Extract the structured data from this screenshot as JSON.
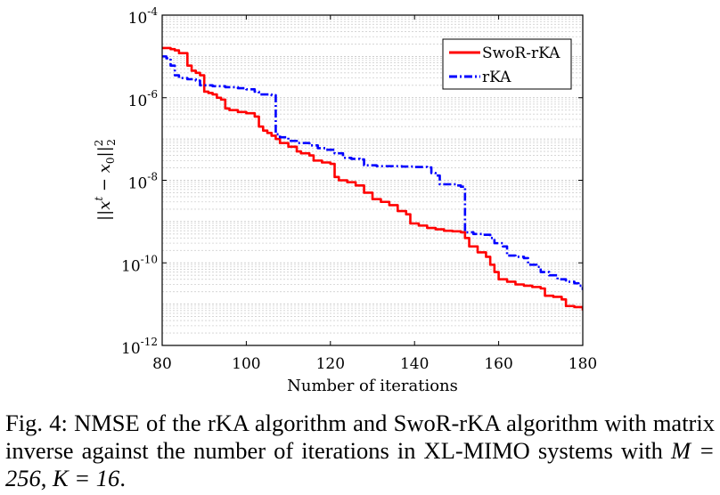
{
  "caption": {
    "text_main": "Fig. 4: NMSE of the rKA algorithm and SwoR-rKA algorithm with matrix inverse against the number of iterations in XL-MIMO systems with ",
    "math_m": "M = 256",
    "sep": ", ",
    "math_k": "K = 16",
    "end": "."
  },
  "colors": {
    "swor": "#ff0000",
    "rka": "#0000ff"
  },
  "chart_data": {
    "type": "line",
    "xlabel": "Number of iterations",
    "ylabel": "||x^t − x_0||_2^2",
    "xlim": [
      80,
      180
    ],
    "ylim": [
      1e-12,
      0.0001
    ],
    "yscale": "log",
    "grid": true,
    "legend_position": "top-right",
    "x_ticks": [
      80,
      100,
      120,
      140,
      160,
      180
    ],
    "y_ticks": [
      {
        "value": 1e-12,
        "base": "10",
        "exp": "-12"
      },
      {
        "value": 1e-10,
        "base": "10",
        "exp": "-10"
      },
      {
        "value": 1e-08,
        "base": "10",
        "exp": "-8"
      },
      {
        "value": 1e-06,
        "base": "10",
        "exp": "-6"
      },
      {
        "value": 0.0001,
        "base": "10",
        "exp": "-4"
      }
    ],
    "series": [
      {
        "name": "SwoR-rKA",
        "color": "#ff0000",
        "style": "solid",
        "points": [
          [
            80,
            1.6e-05
          ],
          [
            81,
            1.6e-05
          ],
          [
            82,
            1.5e-05
          ],
          [
            83,
            1.4e-05
          ],
          [
            84,
            1.2e-05
          ],
          [
            85,
            1.2e-05
          ],
          [
            86,
            6e-06
          ],
          [
            87,
            4.5e-06
          ],
          [
            88,
            4e-06
          ],
          [
            89,
            3.5e-06
          ],
          [
            90,
            1.4e-06
          ],
          [
            91,
            1.3e-06
          ],
          [
            92,
            1.2e-06
          ],
          [
            93,
            1e-06
          ],
          [
            94,
            9e-07
          ],
          [
            95,
            5.5e-07
          ],
          [
            96,
            5e-07
          ],
          [
            98,
            4.5e-07
          ],
          [
            100,
            4.2e-07
          ],
          [
            102,
            3.5e-07
          ],
          [
            103,
            2e-07
          ],
          [
            104,
            1.6e-07
          ],
          [
            105,
            1.4e-07
          ],
          [
            106,
            1.2e-07
          ],
          [
            107,
            1e-07
          ],
          [
            108,
            8e-08
          ],
          [
            110,
            6.5e-08
          ],
          [
            112,
            5e-08
          ],
          [
            113,
            4.5e-08
          ],
          [
            115,
            4e-08
          ],
          [
            116,
            3e-08
          ],
          [
            118,
            2.7e-08
          ],
          [
            120,
            2.5e-08
          ],
          [
            121,
            1.2e-08
          ],
          [
            122,
            1e-08
          ],
          [
            124,
            9e-09
          ],
          [
            126,
            7.5e-09
          ],
          [
            128,
            5e-09
          ],
          [
            130,
            3.5e-09
          ],
          [
            132,
            3e-09
          ],
          [
            134,
            2.5e-09
          ],
          [
            136,
            1.8e-09
          ],
          [
            138,
            1.5e-09
          ],
          [
            139,
            9e-10
          ],
          [
            141,
            8e-10
          ],
          [
            143,
            7e-10
          ],
          [
            145,
            6.5e-10
          ],
          [
            147,
            6e-10
          ],
          [
            149,
            5.8e-10
          ],
          [
            151,
            5.5e-10
          ],
          [
            152,
            4e-10
          ],
          [
            153,
            2.5e-10
          ],
          [
            155,
            1.8e-10
          ],
          [
            157,
            1.4e-10
          ],
          [
            158,
            9e-11
          ],
          [
            159,
            6e-11
          ],
          [
            160,
            4e-11
          ],
          [
            162,
            3.5e-11
          ],
          [
            164,
            3e-11
          ],
          [
            166,
            2.8e-11
          ],
          [
            168,
            2.6e-11
          ],
          [
            170,
            2.4e-11
          ],
          [
            171,
            1.6e-11
          ],
          [
            173,
            1.5e-11
          ],
          [
            175,
            1.3e-11
          ],
          [
            176,
            9e-12
          ],
          [
            178,
            8.5e-12
          ],
          [
            180,
            7e-12
          ]
        ]
      },
      {
        "name": "rKA",
        "color": "#0000ff",
        "style": "dashdot",
        "points": [
          [
            80,
            1e-05
          ],
          [
            81,
            9e-06
          ],
          [
            82,
            6e-06
          ],
          [
            83,
            3.5e-06
          ],
          [
            84,
            3e-06
          ],
          [
            86,
            2.8e-06
          ],
          [
            88,
            2.6e-06
          ],
          [
            89,
            2e-06
          ],
          [
            92,
            1.9e-06
          ],
          [
            95,
            1.8e-06
          ],
          [
            98,
            1.7e-06
          ],
          [
            100,
            1.6e-06
          ],
          [
            102,
            1.4e-06
          ],
          [
            103,
            1.2e-06
          ],
          [
            106,
            1.15e-06
          ],
          [
            107,
            1.3e-07
          ],
          [
            108,
            1.1e-07
          ],
          [
            110,
            9e-08
          ],
          [
            112,
            8e-08
          ],
          [
            115,
            7e-08
          ],
          [
            117,
            6e-08
          ],
          [
            119,
            5.5e-08
          ],
          [
            121,
            4.5e-08
          ],
          [
            123,
            3.5e-08
          ],
          [
            125,
            3.3e-08
          ],
          [
            127,
            3.2e-08
          ],
          [
            128,
            2.3e-08
          ],
          [
            131,
            2.2e-08
          ],
          [
            134,
            2.2e-08
          ],
          [
            137,
            2.15e-08
          ],
          [
            140,
            2.1e-08
          ],
          [
            143,
            2.05e-08
          ],
          [
            144,
            1.5e-08
          ],
          [
            145,
            1.3e-08
          ],
          [
            146,
            8e-09
          ],
          [
            148,
            8e-09
          ],
          [
            150,
            7.5e-09
          ],
          [
            151,
            7e-09
          ],
          [
            152,
            5.5e-10
          ],
          [
            154,
            5e-10
          ],
          [
            156,
            4.8e-10
          ],
          [
            158,
            4e-10
          ],
          [
            159,
            3e-10
          ],
          [
            161,
            2.5e-10
          ],
          [
            162,
            1.5e-10
          ],
          [
            164,
            1.4e-10
          ],
          [
            166,
            1.3e-10
          ],
          [
            167,
            9e-11
          ],
          [
            169,
            8e-11
          ],
          [
            170,
            6e-11
          ],
          [
            172,
            5e-11
          ],
          [
            174,
            4e-11
          ],
          [
            176,
            3.5e-11
          ],
          [
            178,
            3.2e-11
          ],
          [
            179,
            2.8e-11
          ],
          [
            180,
            2.2e-11
          ]
        ]
      }
    ]
  }
}
